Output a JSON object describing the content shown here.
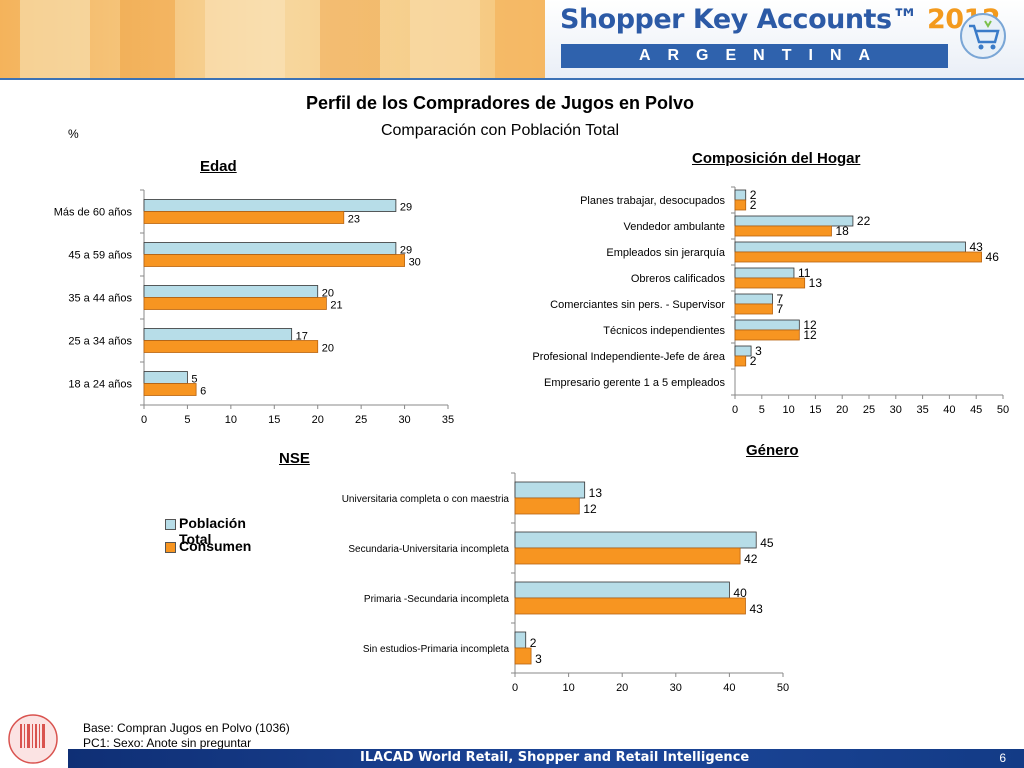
{
  "header": {
    "brand": "Shopper Key Accounts™",
    "year": "2012",
    "country": "ARGENTINA"
  },
  "title": "Perfil de los Compradores de Jugos en Polvo",
  "subtitle": "Comparación con Población Total",
  "unit": "%",
  "legend": [
    {
      "name": "Población Total",
      "color": "#b7dde8"
    },
    {
      "name": "Consumen",
      "color": "#f79521"
    }
  ],
  "chart_data": [
    {
      "type": "bar",
      "title": "Edad",
      "categories": [
        "Más de 60 años",
        "45 a 59 años",
        "35 a 44 años",
        "25 a 34 años",
        "18 a 24 años"
      ],
      "series": [
        {
          "name": "Población Total",
          "values": [
            29,
            29,
            20,
            17,
            5
          ]
        },
        {
          "name": "Consumen",
          "values": [
            23,
            30,
            21,
            20,
            6
          ]
        }
      ],
      "xlim": [
        0,
        35
      ],
      "xticks": [
        0,
        5,
        10,
        15,
        20,
        25,
        30,
        35
      ],
      "orientation": "horizontal",
      "grid": false
    },
    {
      "type": "bar",
      "title": "Composición del Hogar",
      "categories": [
        "Planes trabajar, desocupados",
        "Vendedor ambulante",
        "Empleados sin jerarquía",
        "Obreros calificados",
        "Comerciantes sin pers. - Supervisor",
        "Técnicos independientes",
        "Profesional Independiente-Jefe de área",
        "Empresario gerente 1 a 5 empleados"
      ],
      "series": [
        {
          "name": "Población Total",
          "values": [
            2,
            22,
            43,
            11,
            7,
            12,
            3,
            null
          ]
        },
        {
          "name": "Consumen",
          "values": [
            2,
            18,
            46,
            13,
            7,
            12,
            2,
            null
          ]
        }
      ],
      "xlim": [
        0,
        50
      ],
      "xticks": [
        0,
        5,
        10,
        15,
        20,
        25,
        30,
        35,
        40,
        45,
        50
      ],
      "orientation": "horizontal",
      "grid": false
    },
    {
      "type": "bar",
      "title": "NSE",
      "categories": [
        "Universitaria completa o con maestria",
        "Secundaria-Universitaria incompleta",
        "Primaria -Secundaria incompleta",
        "Sin estudios-Primaria incompleta"
      ],
      "series": [
        {
          "name": "Población Total",
          "values": [
            13,
            45,
            40,
            2
          ]
        },
        {
          "name": "Consumen",
          "values": [
            12,
            42,
            43,
            3
          ]
        }
      ],
      "xlim": [
        0,
        50
      ],
      "xticks": [
        0,
        10,
        20,
        30,
        40,
        50
      ],
      "orientation": "horizontal",
      "grid": false
    },
    {
      "type": "bar",
      "title": "Género"
    }
  ],
  "footnotes": [
    "Base: Compran Jugos en Polvo (1036)",
    "PC1: Sexo: Anote sin preguntar"
  ],
  "footer": {
    "text": "ILACAD World Retail, Shopper and Retail Intelligence",
    "page": "6"
  }
}
